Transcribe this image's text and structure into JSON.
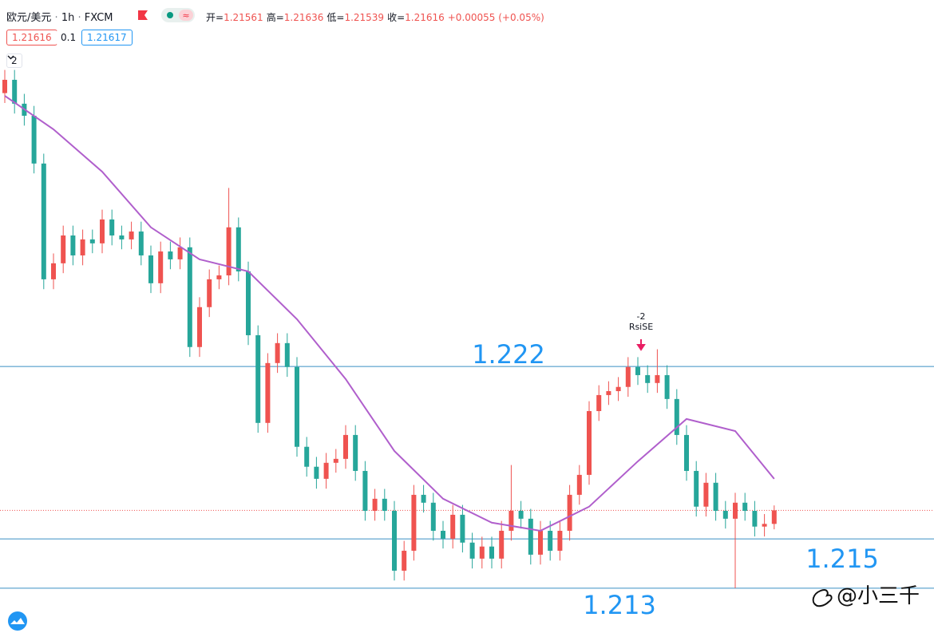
{
  "header": {
    "symbol": "欧元/美元",
    "interval": "1h",
    "source": "FXCM",
    "ohlc": [
      {
        "label": "开=",
        "value": "1.21561"
      },
      {
        "label": "高=",
        "value": "1.21636"
      },
      {
        "label": "低=",
        "value": "1.21539"
      },
      {
        "label": "收=",
        "value": "1.21616"
      }
    ],
    "change": "+0.00055 (+0.05%)",
    "bid": "1.21616",
    "spread": "0.1",
    "ask": "1.21617",
    "collapse_count": "2"
  },
  "chart_data": {
    "type": "candlestick",
    "up_color": "#ef5350",
    "down_color": "#26a69a",
    "ylim": [
      1.21118,
      1.23688
    ],
    "open": [
      1.2331,
      1.23364,
      1.23267,
      1.23218,
      1.23024,
      1.22554,
      1.22619,
      1.22732,
      1.22651,
      1.22716,
      1.227,
      1.22797,
      1.22732,
      1.22716,
      1.22748,
      1.22651,
      1.22538,
      1.22667,
      1.22635,
      1.22684,
      1.22279,
      1.22441,
      1.22554,
      1.2257,
      1.22765,
      1.22586,
      1.22327,
      1.21971,
      1.22214,
      1.22295,
      1.22198,
      1.21874,
      1.21793,
      1.21744,
      1.21809,
      1.21825,
      1.21922,
      1.21776,
      1.21614,
      1.21663,
      1.21614,
      1.21371,
      1.21452,
      1.21679,
      1.21647,
      1.21533,
      1.21501,
      1.21598,
      1.21485,
      1.2142,
      1.21469,
      1.2142,
      1.21533,
      1.21614,
      1.21582,
      1.21436,
      1.21533,
      1.21452,
      1.21533,
      1.21679,
      1.2176,
      1.22019,
      1.22084,
      1.221,
      1.22117,
      1.22198,
      1.22165,
      1.22133,
      1.22165,
      1.22068,
      1.21922,
      1.21776,
      1.21631,
      1.21728,
      1.21614,
      1.21582,
      1.21647,
      1.21614,
      1.2155,
      1.21561
    ],
    "high": [
      1.23404,
      1.23404,
      1.23307,
      1.23258,
      1.23064,
      1.22659,
      1.22772,
      1.22772,
      1.22756,
      1.22756,
      1.22837,
      1.22837,
      1.22772,
      1.22788,
      1.22788,
      1.22691,
      1.22707,
      1.22707,
      1.22724,
      1.22724,
      1.22481,
      1.22594,
      1.2261,
      1.22925,
      1.22805,
      1.22626,
      1.22367,
      1.22254,
      1.22335,
      1.22335,
      1.22238,
      1.21914,
      1.21833,
      1.21849,
      1.21865,
      1.21962,
      1.21962,
      1.21816,
      1.21703,
      1.21703,
      1.21654,
      1.21492,
      1.21719,
      1.21719,
      1.21687,
      1.21573,
      1.21638,
      1.21638,
      1.21525,
      1.21509,
      1.21509,
      1.21573,
      1.218,
      1.21654,
      1.21622,
      1.21573,
      1.21573,
      1.21573,
      1.21719,
      1.218,
      1.22059,
      1.22124,
      1.2214,
      1.22157,
      1.22238,
      1.22238,
      1.22205,
      1.2227,
      1.22205,
      1.22108,
      1.21962,
      1.21816,
      1.21768,
      1.21768,
      1.21654,
      1.21687,
      1.21687,
      1.21654,
      1.21601,
      1.21636
    ],
    "low": [
      1.2327,
      1.23227,
      1.23178,
      1.22984,
      1.22514,
      1.22514,
      1.22579,
      1.22611,
      1.22611,
      1.2266,
      1.2266,
      1.22692,
      1.22676,
      1.22676,
      1.22611,
      1.22498,
      1.22498,
      1.22595,
      1.22595,
      1.22239,
      1.22239,
      1.22401,
      1.22514,
      1.2253,
      1.22546,
      1.22287,
      1.21931,
      1.21931,
      1.22174,
      1.22158,
      1.21834,
      1.21753,
      1.21704,
      1.21704,
      1.21769,
      1.21785,
      1.21736,
      1.21574,
      1.21574,
      1.21574,
      1.21331,
      1.21331,
      1.21412,
      1.21607,
      1.21493,
      1.21461,
      1.21461,
      1.21445,
      1.2138,
      1.2138,
      1.2138,
      1.2138,
      1.21493,
      1.21542,
      1.21396,
      1.21396,
      1.21412,
      1.21412,
      1.21493,
      1.21639,
      1.2172,
      1.21979,
      1.22044,
      1.2206,
      1.22077,
      1.22125,
      1.22093,
      1.22093,
      1.22028,
      1.21882,
      1.21736,
      1.21591,
      1.21591,
      1.21574,
      1.21542,
      1.213,
      1.21574,
      1.2151,
      1.2151,
      1.21539
    ],
    "close": [
      1.23364,
      1.23267,
      1.23218,
      1.23024,
      1.22554,
      1.22619,
      1.22732,
      1.22651,
      1.22716,
      1.227,
      1.22797,
      1.22732,
      1.22716,
      1.22748,
      1.22651,
      1.22538,
      1.22667,
      1.22635,
      1.22684,
      1.22279,
      1.22441,
      1.22554,
      1.2257,
      1.22765,
      1.22586,
      1.22327,
      1.21971,
      1.22214,
      1.22295,
      1.22198,
      1.21874,
      1.21793,
      1.21744,
      1.21809,
      1.21825,
      1.21922,
      1.21776,
      1.21614,
      1.21663,
      1.21614,
      1.21371,
      1.21452,
      1.21679,
      1.21647,
      1.21533,
      1.21501,
      1.21598,
      1.21485,
      1.2142,
      1.21469,
      1.2142,
      1.21533,
      1.21614,
      1.21582,
      1.21436,
      1.21533,
      1.21452,
      1.21533,
      1.21679,
      1.2176,
      1.22019,
      1.22084,
      1.221,
      1.22117,
      1.22198,
      1.22165,
      1.22133,
      1.22165,
      1.22068,
      1.21922,
      1.21776,
      1.21631,
      1.21728,
      1.21614,
      1.21582,
      1.21647,
      1.21614,
      1.2155,
      1.21561,
      1.21616
    ],
    "ma": {
      "color": "#b05fcc",
      "index": [
        0,
        5,
        10,
        15,
        20,
        25,
        30,
        35,
        40,
        45,
        50,
        55,
        60,
        65,
        70,
        75,
        79
      ],
      "values": [
        1.23299,
        1.23163,
        1.22991,
        1.22765,
        1.22635,
        1.22586,
        1.22392,
        1.22149,
        1.21857,
        1.21663,
        1.21566,
        1.21533,
        1.21631,
        1.21815,
        1.21987,
        1.21938,
        1.21744
      ]
    },
    "levels": [
      1.222,
      1.215,
      1.213
    ],
    "level_color": "#3a8fc4",
    "annotation": {
      "lines": [
        "-2",
        "RsiSE"
      ],
      "color": "#e91e63"
    },
    "watermark": "@小三千"
  }
}
